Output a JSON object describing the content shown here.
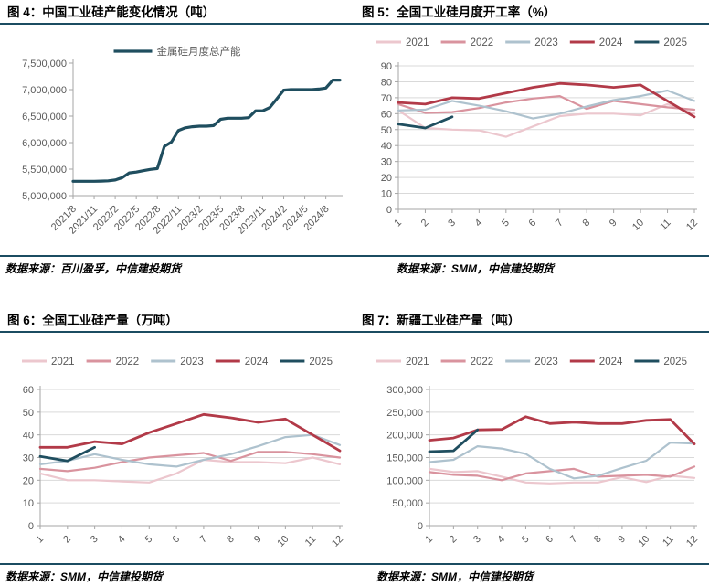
{
  "palette": {
    "rule": "#1b4c61",
    "axis": "#a6a6a6",
    "grid": "#d9d9d9",
    "tick_label": "#595959",
    "legend_label": "#595959",
    "y2021": "#ecc7ce",
    "y2022": "#d9939e",
    "y2023": "#aec2ce",
    "y2024": "#b23a48",
    "y2025": "#1f4e5f"
  },
  "chart_data": [
    {
      "type": "line",
      "title": "图 4：中国工业硅产能变化情况（吨）",
      "source": "数据来源：百川盈孚，中信建投期货",
      "legend_position": "top-center",
      "grid": false,
      "ylim": [
        5000000,
        7500000
      ],
      "y_step": 500000,
      "y_format": "thousands",
      "n_points": 39,
      "x_tick_interval": 3,
      "x_tick_labels": [
        "2021/8",
        "2021/11",
        "2022/2",
        "2022/5",
        "2022/8",
        "2022/11",
        "2023/2",
        "2023/5",
        "2023/8",
        "2023/11",
        "2024/2",
        "2024/5",
        "2024/8"
      ],
      "series": [
        {
          "name": "金属硅月度总产能",
          "color": "#1f4e5f",
          "width": 3.2,
          "values": [
            5270000,
            5270000,
            5270000,
            5270000,
            5275000,
            5280000,
            5295000,
            5340000,
            5430000,
            5445000,
            5470000,
            5495000,
            5510000,
            5930000,
            6010000,
            6230000,
            6280000,
            6300000,
            6310000,
            6310000,
            6320000,
            6440000,
            6460000,
            6460000,
            6460000,
            6470000,
            6600000,
            6600000,
            6660000,
            6820000,
            6990000,
            7000000,
            7000000,
            7000000,
            7000000,
            7010000,
            7030000,
            7180000,
            7180000
          ]
        }
      ]
    },
    {
      "type": "line",
      "title": "图 5：全国工业硅月度开工率（%）",
      "source": "数据来源：SMM，中信建投期货",
      "legend_position": "top-center",
      "grid": true,
      "ylim": [
        0,
        90
      ],
      "y_step": 10,
      "y_format": "plain",
      "n_points": 12,
      "x_tick_interval": 1,
      "x_tick_labels": [
        "1",
        "2",
        "3",
        "4",
        "5",
        "6",
        "7",
        "8",
        "9",
        "10",
        "11",
        "12"
      ],
      "series": [
        {
          "name": "2021",
          "color": "#ecc7ce",
          "width": 2.2,
          "values": [
            62,
            51,
            50,
            49.5,
            45.5,
            52,
            58.5,
            60,
            60,
            59,
            66,
            60
          ]
        },
        {
          "name": "2022",
          "color": "#d9939e",
          "width": 2.2,
          "values": [
            66,
            60.5,
            61,
            63.5,
            67,
            69.5,
            71,
            63,
            68,
            66,
            64,
            62.5
          ]
        },
        {
          "name": "2023",
          "color": "#aec2ce",
          "width": 2.2,
          "values": [
            62,
            62.5,
            68,
            65,
            61.5,
            57,
            60,
            64.5,
            68.5,
            71,
            74.5,
            68
          ]
        },
        {
          "name": "2024",
          "color": "#b23a48",
          "width": 2.8,
          "values": [
            67,
            66,
            70,
            69.5,
            73,
            76.5,
            79,
            78,
            76.5,
            78,
            68,
            58
          ]
        },
        {
          "name": "2025",
          "color": "#1f4e5f",
          "width": 2.8,
          "values": [
            53.5,
            51,
            58
          ]
        }
      ]
    },
    {
      "type": "line",
      "title": "图 6：全国工业硅产量（万吨）",
      "source": "数据来源：SMM，中信建投期货",
      "legend_position": "top-center",
      "grid": true,
      "ylim": [
        0,
        60
      ],
      "y_step": 10,
      "y_format": "plain",
      "n_points": 12,
      "x_tick_interval": 1,
      "x_tick_labels": [
        "1",
        "2",
        "3",
        "4",
        "5",
        "6",
        "7",
        "8",
        "9",
        "10",
        "11",
        "12"
      ],
      "series": [
        {
          "name": "2021",
          "color": "#ecc7ce",
          "width": 2.2,
          "values": [
            23,
            20,
            20,
            19.5,
            19,
            23,
            29,
            28,
            28,
            27.5,
            30,
            27
          ]
        },
        {
          "name": "2022",
          "color": "#d9939e",
          "width": 2.2,
          "values": [
            25,
            24,
            25.5,
            28,
            30,
            31,
            32,
            28.5,
            32.5,
            32.5,
            31.5,
            30
          ]
        },
        {
          "name": "2023",
          "color": "#aec2ce",
          "width": 2.2,
          "values": [
            27,
            28.5,
            31.5,
            29,
            27,
            26,
            29,
            31.5,
            35,
            39,
            40,
            35.5
          ]
        },
        {
          "name": "2024",
          "color": "#b23a48",
          "width": 2.8,
          "values": [
            34.5,
            34.5,
            37,
            36,
            41,
            45,
            49,
            47.5,
            45.5,
            47,
            40,
            33
          ]
        },
        {
          "name": "2025",
          "color": "#1f4e5f",
          "width": 2.8,
          "values": [
            30.5,
            28.5,
            34.5
          ]
        }
      ]
    },
    {
      "type": "line",
      "title": "图 7：新疆工业硅产量（吨）",
      "source": "数据来源：SMM，中信建投期货",
      "legend_position": "top-center",
      "grid": true,
      "ylim": [
        0,
        300000
      ],
      "y_step": 50000,
      "y_format": "thousands",
      "n_points": 12,
      "x_tick_interval": 1,
      "x_tick_labels": [
        "1",
        "2",
        "3",
        "4",
        "5",
        "6",
        "7",
        "8",
        "9",
        "10",
        "11",
        "12"
      ],
      "series": [
        {
          "name": "2021",
          "color": "#ecc7ce",
          "width": 2.2,
          "values": [
            125000,
            118000,
            120000,
            108000,
            95000,
            93000,
            95000,
            95000,
            107000,
            96000,
            110000,
            105000
          ]
        },
        {
          "name": "2022",
          "color": "#d9939e",
          "width": 2.2,
          "values": [
            118000,
            112000,
            110000,
            100000,
            115000,
            120000,
            125000,
            108000,
            110000,
            112000,
            108000,
            130000
          ]
        },
        {
          "name": "2023",
          "color": "#aec2ce",
          "width": 2.2,
          "values": [
            140000,
            145000,
            175000,
            170000,
            158000,
            125000,
            104000,
            110000,
            127000,
            143000,
            183000,
            181000
          ]
        },
        {
          "name": "2024",
          "color": "#b23a48",
          "width": 2.8,
          "values": [
            188000,
            193000,
            211000,
            212000,
            240000,
            225000,
            228000,
            225000,
            225000,
            232000,
            234000,
            180000
          ]
        },
        {
          "name": "2025",
          "color": "#1f4e5f",
          "width": 2.8,
          "values": [
            163000,
            165000,
            211000
          ]
        }
      ]
    }
  ]
}
